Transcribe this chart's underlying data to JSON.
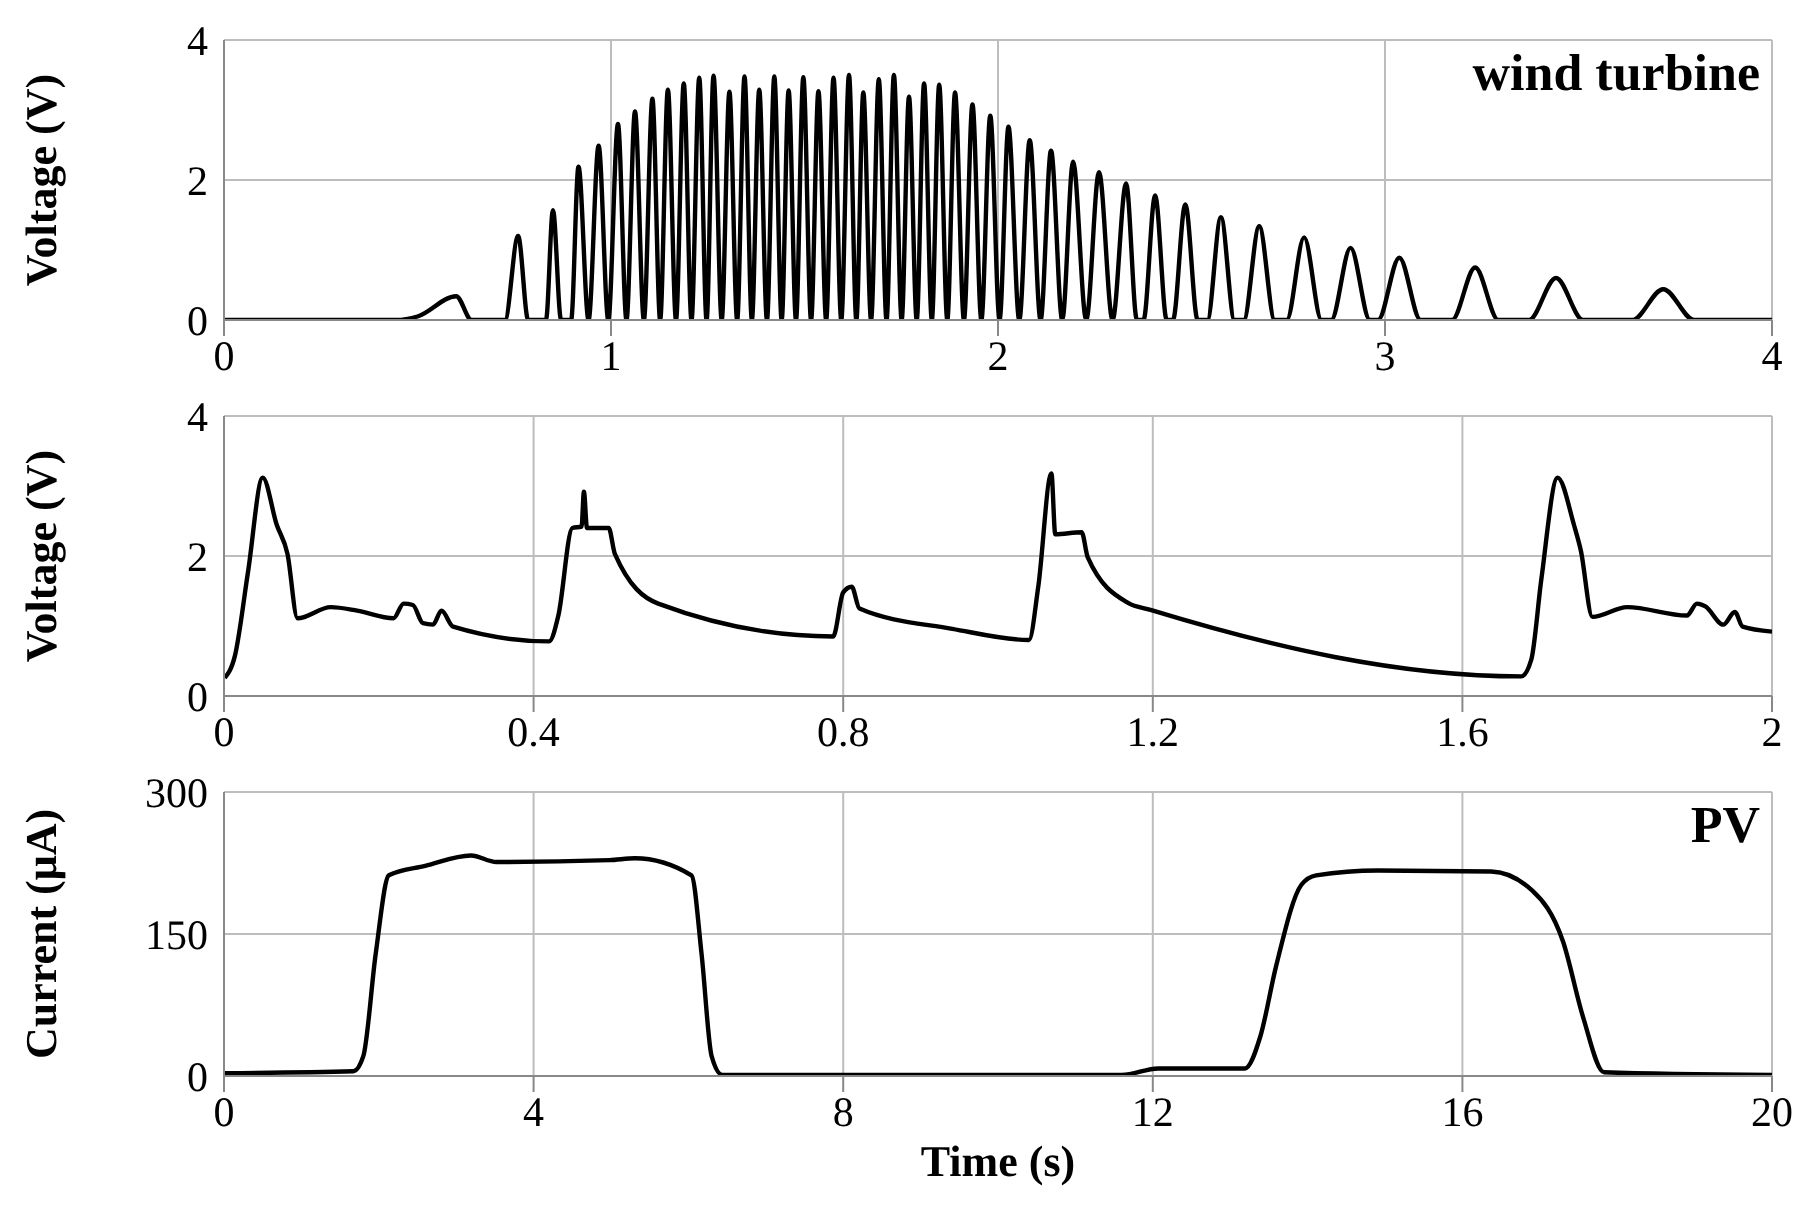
{
  "chart_data": [
    {
      "type": "line",
      "title": "wind turbine",
      "ylabel": "Voltage (V)",
      "color": "#000000",
      "xlim": [
        0,
        4
      ],
      "xticks": [
        0,
        1,
        2,
        3,
        4
      ],
      "ylim": [
        0,
        4
      ],
      "yticks": [
        0,
        2,
        4
      ],
      "grid": true,
      "x": [
        0,
        0.445,
        0.5,
        0.6,
        0.64,
        0.726,
        0.76,
        0.786,
        0.832,
        0.85,
        0.871,
        0.897,
        0.916,
        0.942,
        0.968,
        0.993,
        1.018,
        1.04,
        1.062,
        1.085,
        1.107,
        1.127,
        1.147,
        1.168,
        1.188,
        1.208,
        1.228,
        1.247,
        1.265,
        1.286,
        1.306,
        1.326,
        1.345,
        1.364,
        1.383,
        1.403,
        1.422,
        1.441,
        1.459,
        1.478,
        1.497,
        1.517,
        1.536,
        1.556,
        1.575,
        1.595,
        1.615,
        1.634,
        1.652,
        1.672,
        1.692,
        1.712,
        1.731,
        1.751,
        1.77,
        1.79,
        1.809,
        1.829,
        1.848,
        1.869,
        1.889,
        1.912,
        1.934,
        1.957,
        1.98,
        2.004,
        2.027,
        2.055,
        2.082,
        2.11,
        2.137,
        2.166,
        2.194,
        2.228,
        2.261,
        2.296,
        2.331,
        2.359,
        2.376,
        2.406,
        2.436,
        2.452,
        2.484,
        2.516,
        2.541,
        2.576,
        2.611,
        2.635,
        2.675,
        2.715,
        2.746,
        2.791,
        2.836,
        2.861,
        2.911,
        2.961,
        2.982,
        3.037,
        3.092,
        3.173,
        3.233,
        3.293,
        3.372,
        3.442,
        3.512,
        3.639,
        3.719,
        3.799,
        4
      ],
      "values": [
        0,
        0,
        0.05,
        0.34,
        0,
        0,
        1.2,
        0,
        0,
        1.57,
        0,
        0,
        2.19,
        0,
        2.49,
        0,
        2.8,
        0,
        2.98,
        0,
        3.16,
        0,
        3.29,
        0,
        3.38,
        0,
        3.46,
        0,
        3.49,
        0,
        3.26,
        0,
        3.48,
        0,
        3.29,
        0,
        3.48,
        0,
        3.28,
        0,
        3.47,
        0,
        3.27,
        0,
        3.46,
        0,
        3.5,
        0,
        3.25,
        0,
        3.44,
        0,
        3.5,
        0,
        3.19,
        0,
        3.38,
        0,
        3.36,
        0,
        3.25,
        0,
        3.08,
        0,
        2.92,
        0,
        2.76,
        0,
        2.57,
        0,
        2.42,
        0,
        2.26,
        0,
        2.11,
        0,
        1.95,
        0,
        0,
        1.78,
        0,
        0,
        1.65,
        0,
        0,
        1.47,
        0,
        0,
        1.34,
        0,
        0,
        1.18,
        0,
        0,
        1.03,
        0,
        0,
        0.89,
        0,
        0,
        0.75,
        0,
        0,
        0.6,
        0,
        0,
        0.44,
        0,
        0
      ]
    },
    {
      "type": "line",
      "ylabel": "Voltage (V)",
      "color": "#000000",
      "xlim": [
        0,
        2
      ],
      "xticks": [
        0,
        0.4,
        0.8,
        1.2,
        1.6,
        2
      ],
      "ylim": [
        0,
        4
      ],
      "yticks": [
        0,
        2,
        4
      ],
      "grid": true,
      "x": [
        0.001,
        0.014,
        0.031,
        0.05,
        0.068,
        0.082,
        0.095,
        0.138,
        0.172,
        0.219,
        0.232,
        0.244,
        0.257,
        0.27,
        0.281,
        0.296,
        0.42,
        0.432,
        0.45,
        0.462,
        0.465,
        0.469,
        0.497,
        0.505,
        0.561,
        0.787,
        0.8,
        0.811,
        0.821,
        0.941,
        1.04,
        1.052,
        1.069,
        1.074,
        1.108,
        1.116,
        1.168,
        1.197,
        1.676,
        1.689,
        1.702,
        1.723,
        1.744,
        1.753,
        1.768,
        1.813,
        1.89,
        1.903,
        1.914,
        1.937,
        1.952,
        1.962,
        2
      ],
      "values": [
        0.26,
        0.57,
        1.77,
        3.12,
        2.45,
        2.03,
        1.11,
        1.27,
        1.22,
        1.11,
        1.32,
        1.3,
        1.04,
        1.02,
        1.22,
        0.99,
        0.78,
        1.15,
        2.4,
        2.42,
        2.92,
        2.4,
        2.4,
        2.03,
        1.32,
        0.85,
        1.48,
        1.56,
        1.25,
        0.96,
        0.8,
        1.56,
        3.18,
        2.31,
        2.34,
        1.98,
        1.33,
        1.23,
        0.28,
        0.52,
        1.67,
        3.12,
        2.45,
        2.08,
        1.13,
        1.27,
        1.15,
        1.32,
        1.28,
        1.02,
        1.2,
        0.99,
        0.92
      ]
    },
    {
      "type": "line",
      "title": "PV",
      "xlabel": "Time (s)",
      "ylabel": "Current (μA)",
      "color": "#000000",
      "xlim": [
        0,
        20
      ],
      "xticks": [
        0,
        4,
        8,
        12,
        16,
        20
      ],
      "ylim": [
        0,
        300
      ],
      "yticks": [
        0,
        150,
        300
      ],
      "grid": true,
      "x": [
        0,
        1.67,
        1.8,
        1.96,
        2.13,
        2.6,
        3.19,
        3.52,
        4.98,
        5.31,
        6.04,
        6.17,
        6.3,
        6.44,
        11.6,
        12.07,
        13.19,
        13.39,
        13.59,
        13.92,
        14.11,
        14.91,
        16.37,
        16.9,
        17.3,
        17.56,
        17.83,
        20
      ],
      "values": [
        3,
        5,
        21,
        129,
        212,
        222,
        233,
        226,
        228,
        230,
        212,
        129,
        21,
        1,
        1,
        8,
        8,
        42,
        115,
        202,
        212,
        217,
        216,
        196,
        142,
        62,
        4,
        1
      ]
    }
  ]
}
